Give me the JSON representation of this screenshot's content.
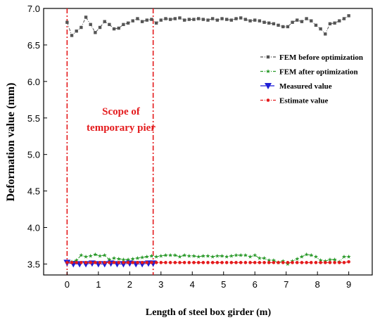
{
  "chart_data": {
    "type": "line",
    "xlabel": "Length of steel box girder (m)",
    "ylabel": "Deformation value (mm)",
    "xlim": [
      -0.75,
      9.75
    ],
    "ylim": [
      3.35,
      7.0
    ],
    "x_ticks": [
      0,
      1,
      2,
      3,
      4,
      5,
      6,
      7,
      8,
      9
    ],
    "y_ticks": [
      3.5,
      4.0,
      4.5,
      5.0,
      5.5,
      6.0,
      6.5,
      7.0
    ],
    "x_tick_labels": [
      "0",
      "1",
      "2",
      "3",
      "4",
      "5",
      "6",
      "7",
      "8",
      "9"
    ],
    "y_tick_labels": [
      "3.5",
      "4.0",
      "4.5",
      "5.0",
      "5.5",
      "6.0",
      "6.5",
      "7.0"
    ],
    "grid": false,
    "legend_position": "top-right",
    "annotation": {
      "line1": "Scope of",
      "line2": "temporary pier",
      "vlines": [
        0,
        2.75
      ],
      "color": "#e41a1c"
    },
    "series": [
      {
        "name": "FEM before optimization",
        "color": "#555555",
        "marker": "square",
        "dash": "4,2,1,2",
        "x": [
          0,
          0.15,
          0.3,
          0.45,
          0.6,
          0.75,
          0.9,
          1.05,
          1.2,
          1.35,
          1.5,
          1.65,
          1.8,
          1.95,
          2.1,
          2.25,
          2.4,
          2.55,
          2.7,
          2.85,
          3.0,
          3.15,
          3.3,
          3.45,
          3.6,
          3.75,
          3.9,
          4.05,
          4.2,
          4.35,
          4.5,
          4.65,
          4.8,
          4.95,
          5.1,
          5.25,
          5.4,
          5.55,
          5.7,
          5.85,
          6.0,
          6.15,
          6.3,
          6.45,
          6.6,
          6.75,
          6.9,
          7.05,
          7.2,
          7.35,
          7.5,
          7.65,
          7.8,
          7.95,
          8.1,
          8.25,
          8.4,
          8.55,
          8.7,
          8.85,
          9.0
        ],
        "y": [
          6.81,
          6.63,
          6.69,
          6.74,
          6.88,
          6.78,
          6.67,
          6.74,
          6.82,
          6.78,
          6.72,
          6.73,
          6.78,
          6.8,
          6.83,
          6.86,
          6.82,
          6.84,
          6.85,
          6.8,
          6.84,
          6.86,
          6.85,
          6.86,
          6.87,
          6.84,
          6.85,
          6.85,
          6.86,
          6.85,
          6.84,
          6.86,
          6.84,
          6.86,
          6.85,
          6.84,
          6.86,
          6.87,
          6.85,
          6.83,
          6.84,
          6.83,
          6.81,
          6.8,
          6.79,
          6.77,
          6.75,
          6.75,
          6.81,
          6.84,
          6.82,
          6.86,
          6.83,
          6.77,
          6.72,
          6.65,
          6.79,
          6.8,
          6.83,
          6.86,
          6.9
        ]
      },
      {
        "name": "FEM after optimization",
        "color": "#2a9a2a",
        "marker": "star",
        "dash": "4,2,1,2",
        "x": [
          0,
          0.15,
          0.3,
          0.45,
          0.6,
          0.75,
          0.9,
          1.05,
          1.2,
          1.35,
          1.5,
          1.65,
          1.8,
          1.95,
          2.1,
          2.25,
          2.4,
          2.55,
          2.7,
          2.85,
          3.0,
          3.15,
          3.3,
          3.45,
          3.6,
          3.75,
          3.9,
          4.05,
          4.2,
          4.35,
          4.5,
          4.65,
          4.8,
          4.95,
          5.1,
          5.25,
          5.4,
          5.55,
          5.7,
          5.85,
          6.0,
          6.15,
          6.3,
          6.45,
          6.6,
          6.75,
          6.9,
          7.05,
          7.2,
          7.35,
          7.5,
          7.65,
          7.8,
          7.95,
          8.1,
          8.25,
          8.4,
          8.55,
          8.7,
          8.85,
          9.0
        ],
        "y": [
          3.52,
          3.53,
          3.55,
          3.62,
          3.6,
          3.61,
          3.63,
          3.61,
          3.62,
          3.56,
          3.58,
          3.57,
          3.56,
          3.56,
          3.57,
          3.58,
          3.59,
          3.6,
          3.61,
          3.6,
          3.61,
          3.62,
          3.62,
          3.62,
          3.6,
          3.62,
          3.61,
          3.61,
          3.6,
          3.61,
          3.61,
          3.6,
          3.61,
          3.61,
          3.6,
          3.61,
          3.62,
          3.62,
          3.62,
          3.6,
          3.62,
          3.58,
          3.58,
          3.55,
          3.55,
          3.52,
          3.54,
          3.5,
          3.54,
          3.57,
          3.6,
          3.63,
          3.62,
          3.6,
          3.55,
          3.54,
          3.56,
          3.56,
          3.53,
          3.6,
          3.6
        ]
      },
      {
        "name": "Measured value",
        "color": "#1f1fd6",
        "marker": "triangle-down",
        "dash": "8,4",
        "x": [
          0,
          0.2,
          0.4,
          0.6,
          0.8,
          1.0,
          1.2,
          1.4,
          1.6,
          1.8,
          2.0,
          2.2,
          2.4,
          2.6,
          2.75
        ],
        "y": [
          3.52,
          3.5,
          3.5,
          3.5,
          3.51,
          3.5,
          3.5,
          3.51,
          3.5,
          3.5,
          3.51,
          3.5,
          3.5,
          3.51,
          3.51
        ]
      },
      {
        "name": "Estimate value",
        "color": "#e41a1c",
        "marker": "circle",
        "dash": "4,2,1,2",
        "x": [
          0,
          0.15,
          0.3,
          0.45,
          0.6,
          0.75,
          0.9,
          1.05,
          1.2,
          1.35,
          1.5,
          1.65,
          1.8,
          1.95,
          2.1,
          2.25,
          2.4,
          2.55,
          2.7,
          2.85,
          3.0,
          3.15,
          3.3,
          3.45,
          3.6,
          3.75,
          3.9,
          4.05,
          4.2,
          4.35,
          4.5,
          4.65,
          4.8,
          4.95,
          5.1,
          5.25,
          5.4,
          5.55,
          5.7,
          5.85,
          6.0,
          6.15,
          6.3,
          6.45,
          6.6,
          6.75,
          6.9,
          7.05,
          7.2,
          7.35,
          7.5,
          7.65,
          7.8,
          7.95,
          8.1,
          8.25,
          8.4,
          8.55,
          8.7,
          8.85,
          9.0
        ],
        "y": [
          3.52,
          3.52,
          3.52,
          3.52,
          3.52,
          3.52,
          3.52,
          3.52,
          3.52,
          3.52,
          3.52,
          3.52,
          3.52,
          3.52,
          3.52,
          3.52,
          3.52,
          3.52,
          3.52,
          3.52,
          3.52,
          3.52,
          3.52,
          3.52,
          3.52,
          3.52,
          3.52,
          3.52,
          3.52,
          3.52,
          3.52,
          3.52,
          3.52,
          3.52,
          3.52,
          3.52,
          3.52,
          3.52,
          3.52,
          3.52,
          3.52,
          3.52,
          3.52,
          3.52,
          3.52,
          3.52,
          3.52,
          3.52,
          3.52,
          3.52,
          3.52,
          3.52,
          3.52,
          3.52,
          3.52,
          3.52,
          3.52,
          3.52,
          3.52,
          3.52,
          3.53
        ]
      }
    ]
  }
}
